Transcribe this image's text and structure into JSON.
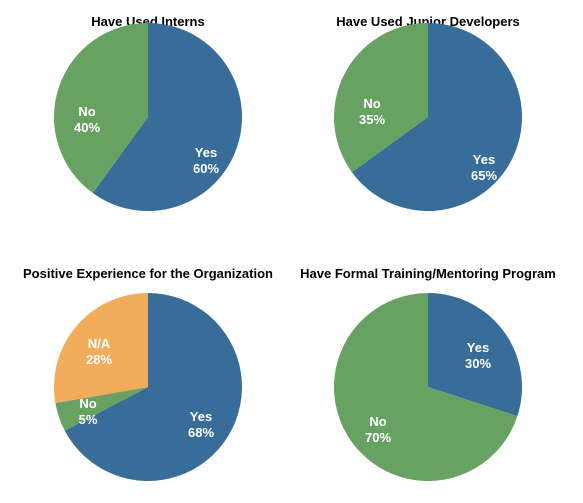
{
  "chart_data": [
    {
      "type": "pie",
      "title": "Have Used Interns",
      "slices": [
        {
          "label": "Yes",
          "value": 60,
          "pct_label": "60%",
          "color": "#386d99"
        },
        {
          "label": "No",
          "value": 40,
          "pct_label": "40%",
          "color": "#67a262"
        }
      ]
    },
    {
      "type": "pie",
      "title": "Have Used Junior Developers",
      "slices": [
        {
          "label": "Yes",
          "value": 65,
          "pct_label": "65%",
          "color": "#386d99"
        },
        {
          "label": "No",
          "value": 35,
          "pct_label": "35%",
          "color": "#67a262"
        }
      ]
    },
    {
      "type": "pie",
      "title": "Positive Experience for the Organization",
      "slices": [
        {
          "label": "Yes",
          "value": 68,
          "pct_label": "68%",
          "color": "#386d99"
        },
        {
          "label": "No",
          "value": 5,
          "pct_label": "5%",
          "color": "#67a262"
        },
        {
          "label": "N/A",
          "value": 28,
          "pct_label": "28%",
          "color": "#f2ad5c"
        }
      ]
    },
    {
      "type": "pie",
      "title": "Have Formal Training/Mentoring Program",
      "slices": [
        {
          "label": "Yes",
          "value": 30,
          "pct_label": "30%",
          "color": "#386d99"
        },
        {
          "label": "No",
          "value": 70,
          "pct_label": "70%",
          "color": "#67a262"
        }
      ]
    }
  ]
}
